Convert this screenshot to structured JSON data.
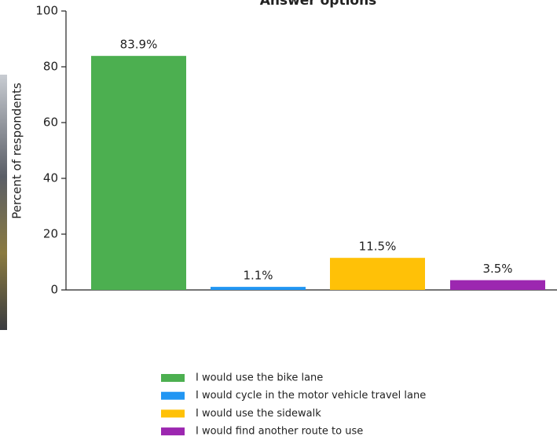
{
  "chart_data": {
    "type": "bar",
    "title": "Answer options",
    "y_label": "Percent of respondents",
    "categories": [
      "I would use the bike lane",
      "I would cycle in the motor vehicle travel lane",
      "I would use the sidewalk",
      "I would find another route to use"
    ],
    "values": [
      83.9,
      1.1,
      11.5,
      3.5
    ],
    "value_labels": [
      "83.9%",
      "1.1%",
      "11.5%",
      "3.5%"
    ],
    "colors": [
      "#4caf50",
      "#2196f3",
      "#ffc107",
      "#9c27b0"
    ],
    "ylim": [
      0,
      100
    ],
    "yticks": [
      0,
      20,
      40,
      60,
      80,
      100
    ],
    "grid": false,
    "legend": "bottom"
  }
}
